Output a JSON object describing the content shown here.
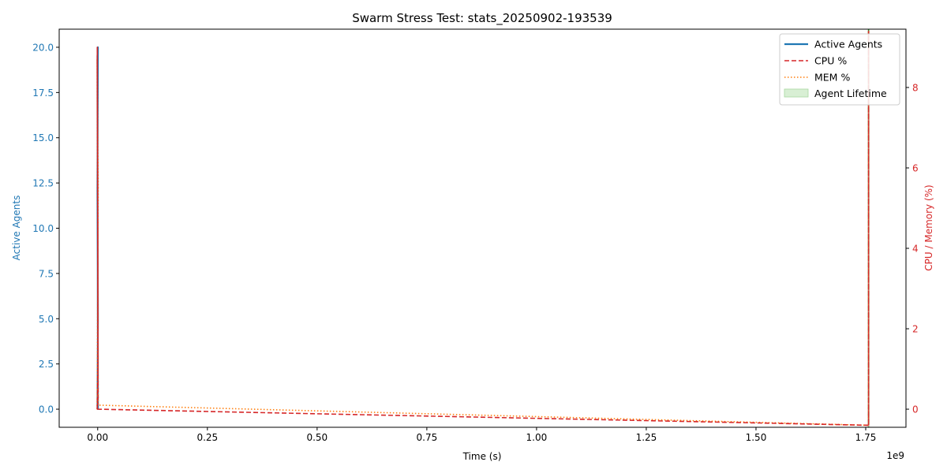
{
  "chart_data": {
    "type": "line",
    "title": "Swarm Stress Test: stats_20250902-193539",
    "xlabel": "Time (s)",
    "ylabel_left": "Active Agents",
    "ylabel_right": "CPU / Memory (%)",
    "x_offset_label": "1e9",
    "xlim": [
      -0.0877,
      1.8417
    ],
    "ylim_left": [
      -1.0,
      21.0
    ],
    "ylim_right": [
      -0.45,
      9.45
    ],
    "x_ticks": [
      0.0,
      0.25,
      0.5,
      0.75,
      1.0,
      1.25,
      1.5,
      1.75
    ],
    "x_tick_labels": [
      "0.00",
      "0.25",
      "0.50",
      "0.75",
      "1.00",
      "1.25",
      "1.50",
      "1.75"
    ],
    "y_left_ticks": [
      0.0,
      2.5,
      5.0,
      7.5,
      10.0,
      12.5,
      15.0,
      17.5,
      20.0
    ],
    "y_left_tick_labels": [
      "0.0",
      "2.5",
      "5.0",
      "7.5",
      "10.0",
      "12.5",
      "15.0",
      "17.5",
      "20.0"
    ],
    "y_right_ticks": [
      0,
      2,
      4,
      6,
      8
    ],
    "y_right_tick_labels": [
      "0",
      "2",
      "4",
      "6",
      "8"
    ],
    "legend_placement": "top-right",
    "grid": false,
    "series": [
      {
        "name": "Active Agents",
        "axis": "left",
        "style": "solid",
        "color": "#1f77b4",
        "x": [
          0.0,
          0.0,
          0.0,
          0.0,
          0.0,
          0.0
        ],
        "y": [
          0.0,
          5.0,
          12.0,
          20.0,
          19.5,
          0.0
        ]
      },
      {
        "name": "CPU %",
        "axis": "right",
        "style": "dashed",
        "color": "#d62728",
        "x": [
          0.0,
          0.0,
          0.0,
          0.0,
          0.0,
          1.7565,
          1.7565,
          1.7565
        ],
        "y": [
          0.0,
          1.2,
          9.0,
          0.3,
          0.0,
          -0.4,
          9.4,
          -0.4
        ]
      },
      {
        "name": "MEM %",
        "axis": "right",
        "style": "dotted",
        "color": "#ff7f0e",
        "x": [
          0.0,
          0.0,
          0.0,
          0.0,
          1.7565,
          1.7565
        ],
        "y": [
          0.0,
          5.5,
          8.7,
          0.1,
          -0.4,
          9.4
        ]
      },
      {
        "name": "Agent Lifetime",
        "axis": "left",
        "style": "band",
        "color": "#2ca02c",
        "x": [
          0.0,
          1.7565
        ],
        "y": [
          0.0,
          20.0
        ]
      }
    ]
  },
  "colors": {
    "left_axis": "#1f77b4",
    "right_axis": "#d62728",
    "mem": "#ff7f0e",
    "lifetime_fill": "#d8efd4",
    "lifetime_edge": "#2ca02c"
  }
}
